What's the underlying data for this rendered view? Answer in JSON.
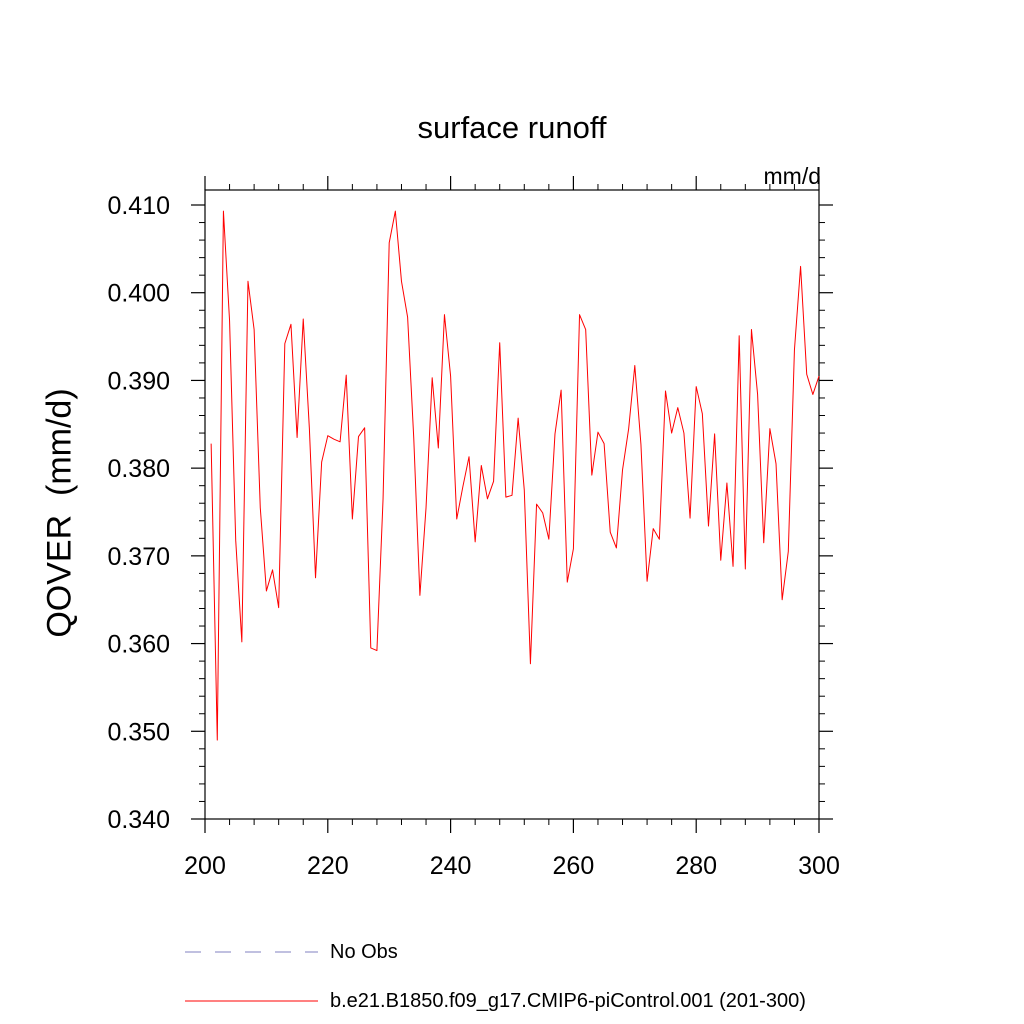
{
  "chart_data": {
    "type": "line",
    "title": "surface runoff",
    "units": "mm/d",
    "ylabel": "QOVER  (mm/d)",
    "xlabel": "",
    "xlim": [
      200,
      300
    ],
    "ylim": [
      0.34,
      0.41
    ],
    "xticks": [
      "200",
      "220",
      "240",
      "260",
      "280",
      "300"
    ],
    "yticks": [
      "0.340",
      "0.350",
      "0.360",
      "0.370",
      "0.380",
      "0.390",
      "0.400",
      "0.410"
    ],
    "grid": false,
    "legend_position": "bottom",
    "colors": {
      "model": "#ff0000",
      "obs": "#8080c0"
    },
    "legend": [
      {
        "name": "No Obs",
        "style": "dashed"
      },
      {
        "name": "b.e21.B1850.f09_g17.CMIP6-piControl.001 (201-300)",
        "style": "solid"
      }
    ],
    "series": [
      {
        "name": "b.e21.B1850.f09_g17.CMIP6-piControl.001 (201-300)",
        "x": [
          201,
          202,
          203,
          204,
          205,
          206,
          207,
          208,
          209,
          210,
          211,
          212,
          213,
          214,
          215,
          216,
          217,
          218,
          219,
          220,
          221,
          222,
          223,
          224,
          225,
          226,
          227,
          228,
          229,
          230,
          231,
          232,
          233,
          234,
          235,
          236,
          237,
          238,
          239,
          240,
          241,
          242,
          243,
          244,
          245,
          246,
          247,
          248,
          249,
          250,
          251,
          252,
          253,
          254,
          255,
          256,
          257,
          258,
          259,
          260,
          261,
          262,
          263,
          264,
          265,
          266,
          267,
          268,
          269,
          270,
          271,
          272,
          273,
          274,
          275,
          276,
          277,
          278,
          279,
          280,
          281,
          282,
          283,
          284,
          285,
          286,
          287,
          288,
          289,
          290,
          291,
          292,
          293,
          294,
          295,
          296,
          297,
          298,
          299,
          300
        ],
        "values": [
          0.3828,
          0.349,
          0.4093,
          0.3968,
          0.3718,
          0.3602,
          0.4013,
          0.3958,
          0.3755,
          0.366,
          0.3684,
          0.3641,
          0.3942,
          0.3964,
          0.3835,
          0.397,
          0.3845,
          0.3675,
          0.3807,
          0.3837,
          0.3833,
          0.383,
          0.3906,
          0.3742,
          0.3836,
          0.3846,
          0.3595,
          0.3592,
          0.3765,
          0.4057,
          0.4093,
          0.4013,
          0.3972,
          0.3834,
          0.3655,
          0.3755,
          0.3903,
          0.3823,
          0.3975,
          0.3905,
          0.3742,
          0.3779,
          0.3813,
          0.3716,
          0.3803,
          0.3765,
          0.3785,
          0.3943,
          0.3767,
          0.3769,
          0.3857,
          0.3775,
          0.3577,
          0.3759,
          0.3749,
          0.3719,
          0.3839,
          0.3889,
          0.367,
          0.3708,
          0.3975,
          0.3958,
          0.3792,
          0.3841,
          0.3828,
          0.3727,
          0.3709,
          0.3798,
          0.3845,
          0.3917,
          0.3827,
          0.3671,
          0.3731,
          0.3719,
          0.3888,
          0.384,
          0.3869,
          0.384,
          0.3743,
          0.3893,
          0.3862,
          0.3734,
          0.3839,
          0.3695,
          0.3783,
          0.3688,
          0.3951,
          0.3685,
          0.3958,
          0.3884,
          0.3715,
          0.3845,
          0.3805,
          0.365,
          0.3705,
          0.3935,
          0.403,
          0.3907,
          0.3884,
          0.3905
        ]
      }
    ]
  }
}
